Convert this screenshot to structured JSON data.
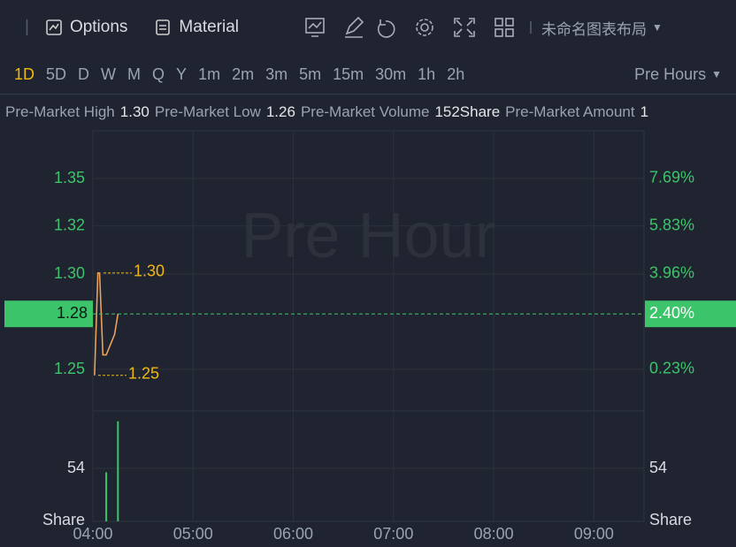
{
  "toolbar": {
    "options": "Options",
    "material": "Material",
    "layout_name": "未命名图表布局"
  },
  "timeframes": {
    "items": [
      "1D",
      "5D",
      "D",
      "W",
      "M",
      "Q",
      "Y",
      "1m",
      "2m",
      "3m",
      "5m",
      "15m",
      "30m",
      "1h",
      "2h"
    ],
    "active": "1D",
    "session": "Pre Hours"
  },
  "stats": [
    {
      "label": "Pre-Market High",
      "value": "1.30"
    },
    {
      "label": "Pre-Market Low",
      "value": "1.26"
    },
    {
      "label": "Pre-Market Volume",
      "value": "152Share"
    },
    {
      "label": "Pre-Market Amount",
      "value": "1"
    }
  ],
  "chart_data": {
    "type": "line",
    "watermark": "Pre Hour",
    "x": [
      "04:01",
      "04:03",
      "04:04",
      "04:06",
      "04:08",
      "04:13",
      "04:15"
    ],
    "series": [
      {
        "color": "#e8a25a",
        "values": [
          1.25,
          1.3,
          1.3,
          1.26,
          1.26,
          1.27,
          1.28
        ]
      }
    ],
    "xlim": [
      "04:00",
      "09:30"
    ],
    "xticks": [
      "04:00",
      "05:00",
      "06:00",
      "07:00",
      "08:00",
      "09:00"
    ],
    "ylim": [
      1.2348,
      1.3694
    ],
    "yticks": [
      {
        "value": 1.2529,
        "label": "1.25"
      },
      {
        "value": 1.2995,
        "label": "1.30"
      },
      {
        "value": 1.3229,
        "label": "1.32"
      },
      {
        "value": 1.3461,
        "label": "1.35"
      }
    ],
    "y2lim": [
      -1.22,
      9.55
    ],
    "y2ticks": [
      {
        "value": 0.23,
        "label": "0.23%"
      },
      {
        "value": 3.96,
        "label": "3.96%"
      },
      {
        "value": 5.83,
        "label": "5.83%"
      },
      {
        "value": 7.69,
        "label": "7.69%"
      }
    ],
    "high_marker": {
      "value": 1.3,
      "label": "1.30"
    },
    "low_marker": {
      "value": 1.25,
      "label": "1.25"
    },
    "current": {
      "value": 1.28,
      "label": "1.28",
      "change": 2.4,
      "change_label": "2.40%"
    },
    "volume": {
      "x": [
        "04:08",
        "04:15"
      ],
      "values": [
        50,
        102
      ],
      "color": "#3cc46a",
      "ylim": [
        0,
        108
      ],
      "yticks": [
        54
      ],
      "unit": "Share"
    }
  }
}
